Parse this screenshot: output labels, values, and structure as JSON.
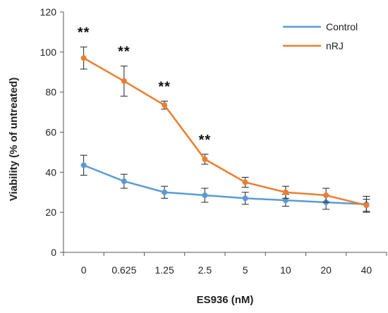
{
  "chart_data": {
    "type": "line",
    "title": "",
    "xlabel": "ES936 (nM)",
    "ylabel": "Viability (% of untreated)",
    "categories": [
      "0",
      "0.625",
      "1.25",
      "2.5",
      "5",
      "10",
      "20",
      "40"
    ],
    "ylim": [
      0,
      120
    ],
    "yticks": [
      0,
      20,
      40,
      60,
      80,
      100,
      120
    ],
    "grid": false,
    "legend_position": "top-right",
    "series": [
      {
        "name": "Control",
        "color": "#5b9bd5",
        "values": [
          43.5,
          35.5,
          30,
          28.5,
          27,
          26,
          25,
          24
        ],
        "errors": [
          5,
          3.5,
          3,
          3.5,
          3,
          3,
          3.5,
          4
        ]
      },
      {
        "name": "nRJ",
        "color": "#ed7d31",
        "values": [
          97,
          85.5,
          73.5,
          46.5,
          35,
          30,
          28.5,
          23.5
        ],
        "errors": [
          5.5,
          7.5,
          2,
          2.5,
          2.5,
          3,
          3.5,
          3
        ]
      }
    ],
    "annotations": [
      {
        "category": "0",
        "text": "**"
      },
      {
        "category": "0.625",
        "text": "**"
      },
      {
        "category": "1.25",
        "text": "**"
      },
      {
        "category": "2.5",
        "text": "**"
      }
    ]
  }
}
